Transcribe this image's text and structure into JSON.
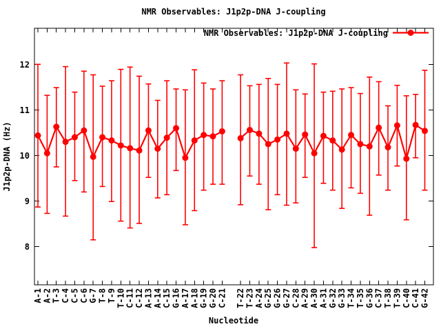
{
  "title": "NMR Observables: J1p2p-DNA J-coupling",
  "legend": {
    "label": "NMR Observables: J1p2p-DNA J-coupling"
  },
  "axes": {
    "xlabel": "Nucleotide",
    "ylabel": "J1p2p-DNA (Hz)",
    "yticks": [
      8,
      9,
      10,
      11,
      12
    ]
  },
  "colors": {
    "series": "#ff0000",
    "axis": "#000000",
    "background": "#ffffff"
  },
  "chart_data": {
    "type": "line",
    "series_name": "NMR Observables: J1p2p-DNA J-coupling",
    "marker": "filled-circle",
    "error_bars": true,
    "grid": false,
    "legend_position": "top-right-inside",
    "title": "NMR Observables: J1p2p-DNA J-coupling",
    "xlabel": "Nucleotide",
    "ylabel": "J1p2p-DNA (Hz)",
    "ylim": [
      7.2,
      12.8
    ],
    "yticks": [
      8,
      9,
      10,
      11,
      12
    ],
    "gap_after_index": 20,
    "categories": [
      "A-1",
      "A-2",
      "T-3",
      "C-4",
      "C-5",
      "C-6",
      "G-7",
      "T-8",
      "T-9",
      "T-10",
      "C-11",
      "C-12",
      "A-13",
      "A-14",
      "C-15",
      "G-16",
      "A-17",
      "A-18",
      "G-19",
      "G-20",
      "C-21",
      "T-22",
      "T-23",
      "A-24",
      "G-25",
      "G-26",
      "G-27",
      "C-28",
      "A-29",
      "A-30",
      "A-31",
      "G-32",
      "G-33",
      "T-34",
      "T-35",
      "G-36",
      "C-37",
      "T-38",
      "T-39",
      "C-40",
      "C-41",
      "G-42"
    ],
    "values": [
      10.44,
      10.05,
      10.63,
      10.3,
      10.4,
      10.55,
      9.97,
      10.4,
      10.33,
      10.22,
      10.16,
      10.11,
      10.55,
      10.15,
      10.39,
      10.6,
      9.95,
      10.33,
      10.45,
      10.42,
      10.53,
      10.38,
      10.56,
      10.48,
      10.25,
      10.35,
      10.48,
      10.15,
      10.46,
      10.05,
      10.43,
      10.33,
      10.13,
      10.45,
      10.25,
      10.2,
      10.61,
      10.18,
      10.66,
      9.93,
      10.67,
      10.54
    ],
    "error_high": [
      12.0,
      11.32,
      11.49,
      11.95,
      11.39,
      11.85,
      11.77,
      11.52,
      11.64,
      11.89,
      11.94,
      11.74,
      11.57,
      11.21,
      11.64,
      11.46,
      11.44,
      11.88,
      11.59,
      11.46,
      11.64,
      11.77,
      11.53,
      11.56,
      11.69,
      11.56,
      12.03,
      11.44,
      11.35,
      12.01,
      11.39,
      11.41,
      11.46,
      11.49,
      11.36,
      11.72,
      11.62,
      11.09,
      11.54,
      11.31,
      11.34,
      11.87
    ],
    "error_low": [
      8.87,
      8.73,
      9.75,
      8.67,
      9.45,
      9.2,
      8.15,
      9.32,
      8.99,
      8.56,
      8.41,
      8.51,
      9.52,
      9.07,
      9.14,
      9.67,
      8.48,
      8.79,
      9.24,
      9.37,
      9.37,
      8.92,
      9.55,
      9.37,
      8.81,
      9.14,
      8.91,
      8.96,
      9.52,
      7.98,
      9.39,
      9.24,
      8.84,
      9.29,
      9.17,
      8.69,
      9.57,
      9.24,
      9.77,
      8.59,
      9.95,
      9.24
    ]
  }
}
